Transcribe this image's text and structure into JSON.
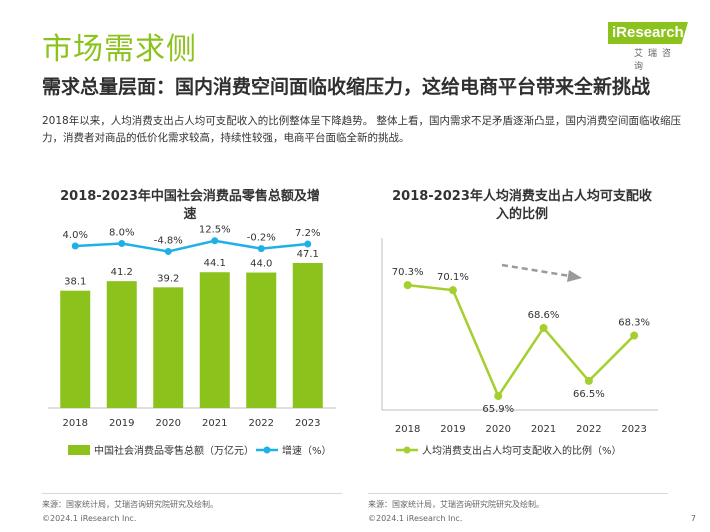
{
  "page": {
    "title": "市场需求侧",
    "subtitle": "需求总量层面：国内消费空间面临收缩压力，这给电商平台带来全新挑战",
    "intro": "2018年以来，人均消费支出占人均可支配收入的比例整体呈下降趋势。 整体上看，国内需求不足矛盾逐渐凸显，国内消费空间面临收缩压力，消费者对商品的低价化需求较高，持续性较强，电商平台面临全新的挑战。",
    "logo_text": "iResearch",
    "logo_cn": "艾瑞咨询",
    "page_number": "7"
  },
  "footer": {
    "left_source": "来源：国家统计局，艾瑞咨询研究院研究及绘制。",
    "left_copyright": "©2024.1 iResearch Inc.",
    "right_source": "来源：国家统计局，艾瑞咨询研究院研究及绘制。",
    "right_copyright": "©2024.1 iResearch Inc."
  },
  "colors": {
    "brand_green": "#8bc21c",
    "bar_green": "#8bc21c",
    "growth_line": "#1fb0e8",
    "ratio_line": "#a4cf2c",
    "trend_arrow": "#9a9a9a"
  },
  "chart_data": [
    {
      "type": "bar",
      "title": "2018-2023年中国社会消费品零售总额及增速",
      "categories": [
        "2018",
        "2019",
        "2020",
        "2021",
        "2022",
        "2023"
      ],
      "series": [
        {
          "name": "中国社会消费品零售总额（万亿元）",
          "type": "bar",
          "values": [
            38.1,
            41.2,
            39.2,
            44.1,
            44.0,
            47.1
          ],
          "labels": [
            "38.1",
            "41.2",
            "39.2",
            "44.1",
            "44.0",
            "47.1"
          ]
        },
        {
          "name": "增速（%）",
          "type": "line",
          "values": [
            4.0,
            8.0,
            -4.8,
            12.5,
            -0.2,
            7.2
          ],
          "labels": [
            "4.0%",
            "8.0%",
            "-4.8%",
            "12.5%",
            "-0.2%",
            "7.2%"
          ]
        }
      ],
      "legend": "bottom",
      "grid": false
    },
    {
      "type": "line",
      "title": "2018-2023年人均消费支出占人均可支配收入的比例",
      "categories": [
        "2018",
        "2019",
        "2020",
        "2021",
        "2022",
        "2023"
      ],
      "series": [
        {
          "name": "人均消费支出占人均可支配收入的比例（%）",
          "values": [
            70.3,
            70.1,
            65.9,
            68.6,
            66.5,
            68.3
          ],
          "labels": [
            "70.3%",
            "70.1%",
            "65.9%",
            "68.6%",
            "66.5%",
            "68.3%"
          ]
        }
      ],
      "legend": "bottom",
      "grid": false,
      "annotation": "downward-trend-arrow"
    }
  ]
}
